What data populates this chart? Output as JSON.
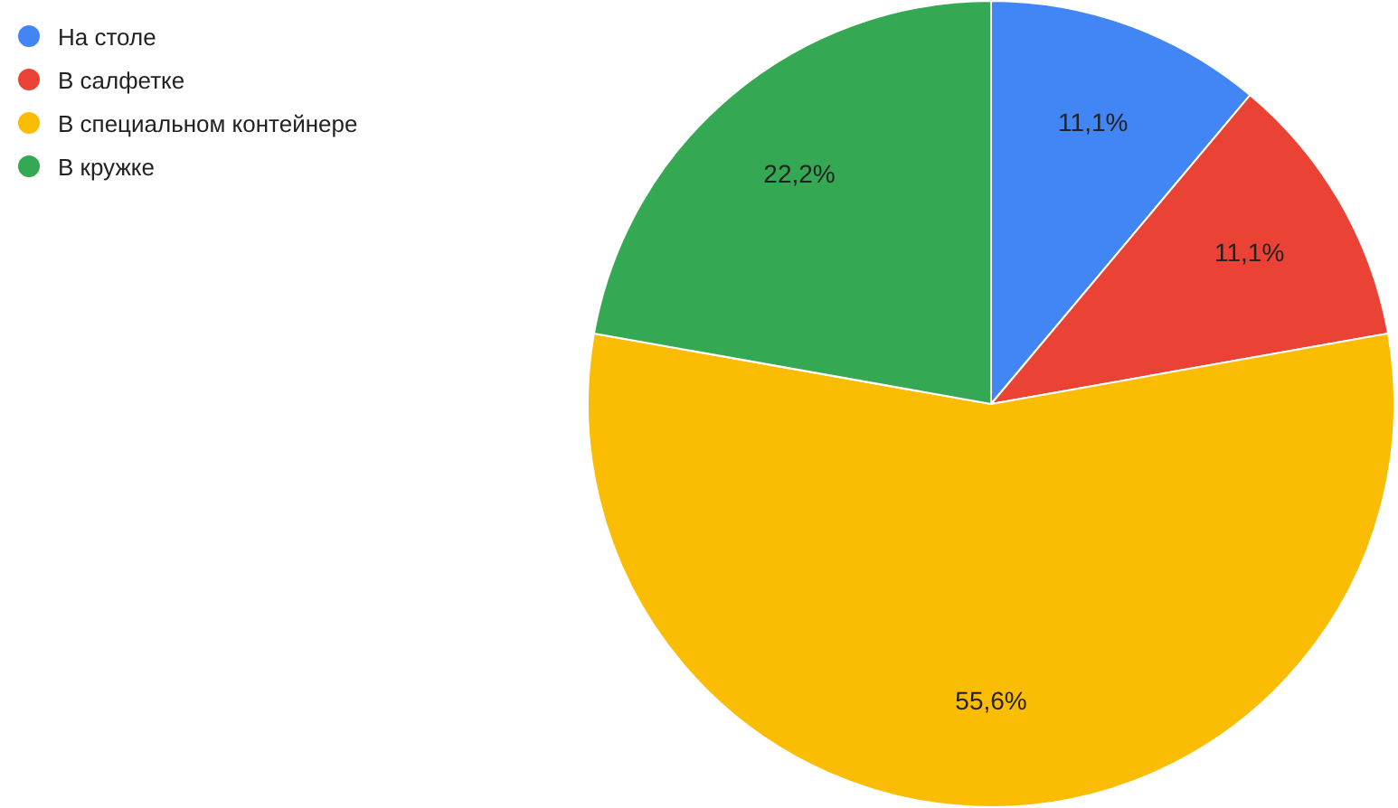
{
  "chart_data": {
    "type": "pie",
    "categories": [
      "На столе",
      "В салфетке",
      "В специальном контейнере",
      "В кружке"
    ],
    "values": [
      11.1,
      11.1,
      55.6,
      22.2
    ],
    "colors": [
      "#4285f4",
      "#ea4335",
      "#fbbc04",
      "#34a853"
    ],
    "value_labels": [
      "11,1%",
      "11,1%",
      "55,6%",
      "22,2%"
    ],
    "legend": "top left"
  }
}
